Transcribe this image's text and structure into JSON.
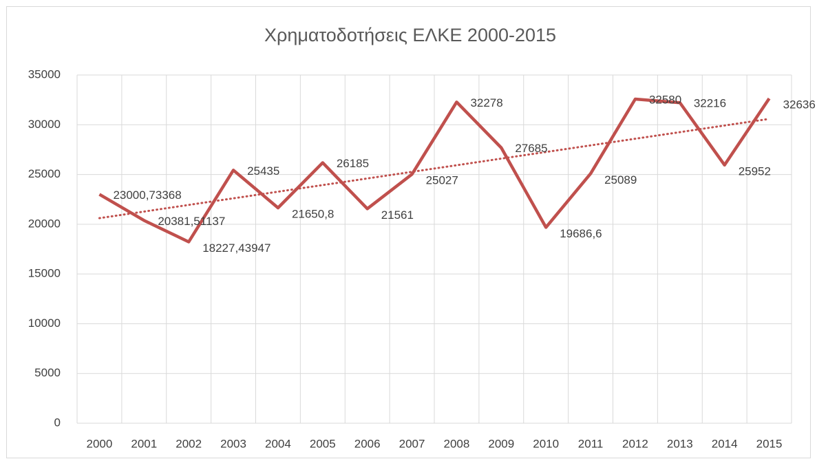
{
  "chart_data": {
    "type": "line",
    "title": "Χρηματοδοτήσεις ΕΛΚΕ 2000-2015",
    "categories": [
      "2000",
      "2001",
      "2002",
      "2003",
      "2004",
      "2005",
      "2006",
      "2007",
      "2008",
      "2009",
      "2010",
      "2011",
      "2012",
      "2013",
      "2014",
      "2015"
    ],
    "values": [
      23000.73368,
      20381.51137,
      18227.43947,
      25435,
      21650.8,
      26185,
      21561,
      25027,
      32278,
      27685,
      19686.6,
      25089,
      32580,
      32216,
      25952,
      32636
    ],
    "value_labels": [
      "23000,73368",
      "20381,51137",
      "18227,43947",
      "25435",
      "21650,8",
      "26185",
      "21561",
      "25027",
      "32278",
      "27685",
      "19686,6",
      "25089",
      "32580",
      "32216",
      "25952",
      "32636"
    ],
    "color": "#c0504d",
    "trendline": "linear",
    "ylim": [
      0,
      35000
    ],
    "yticks": [
      0,
      5000,
      10000,
      15000,
      20000,
      25000,
      30000,
      35000
    ],
    "grid": true
  }
}
